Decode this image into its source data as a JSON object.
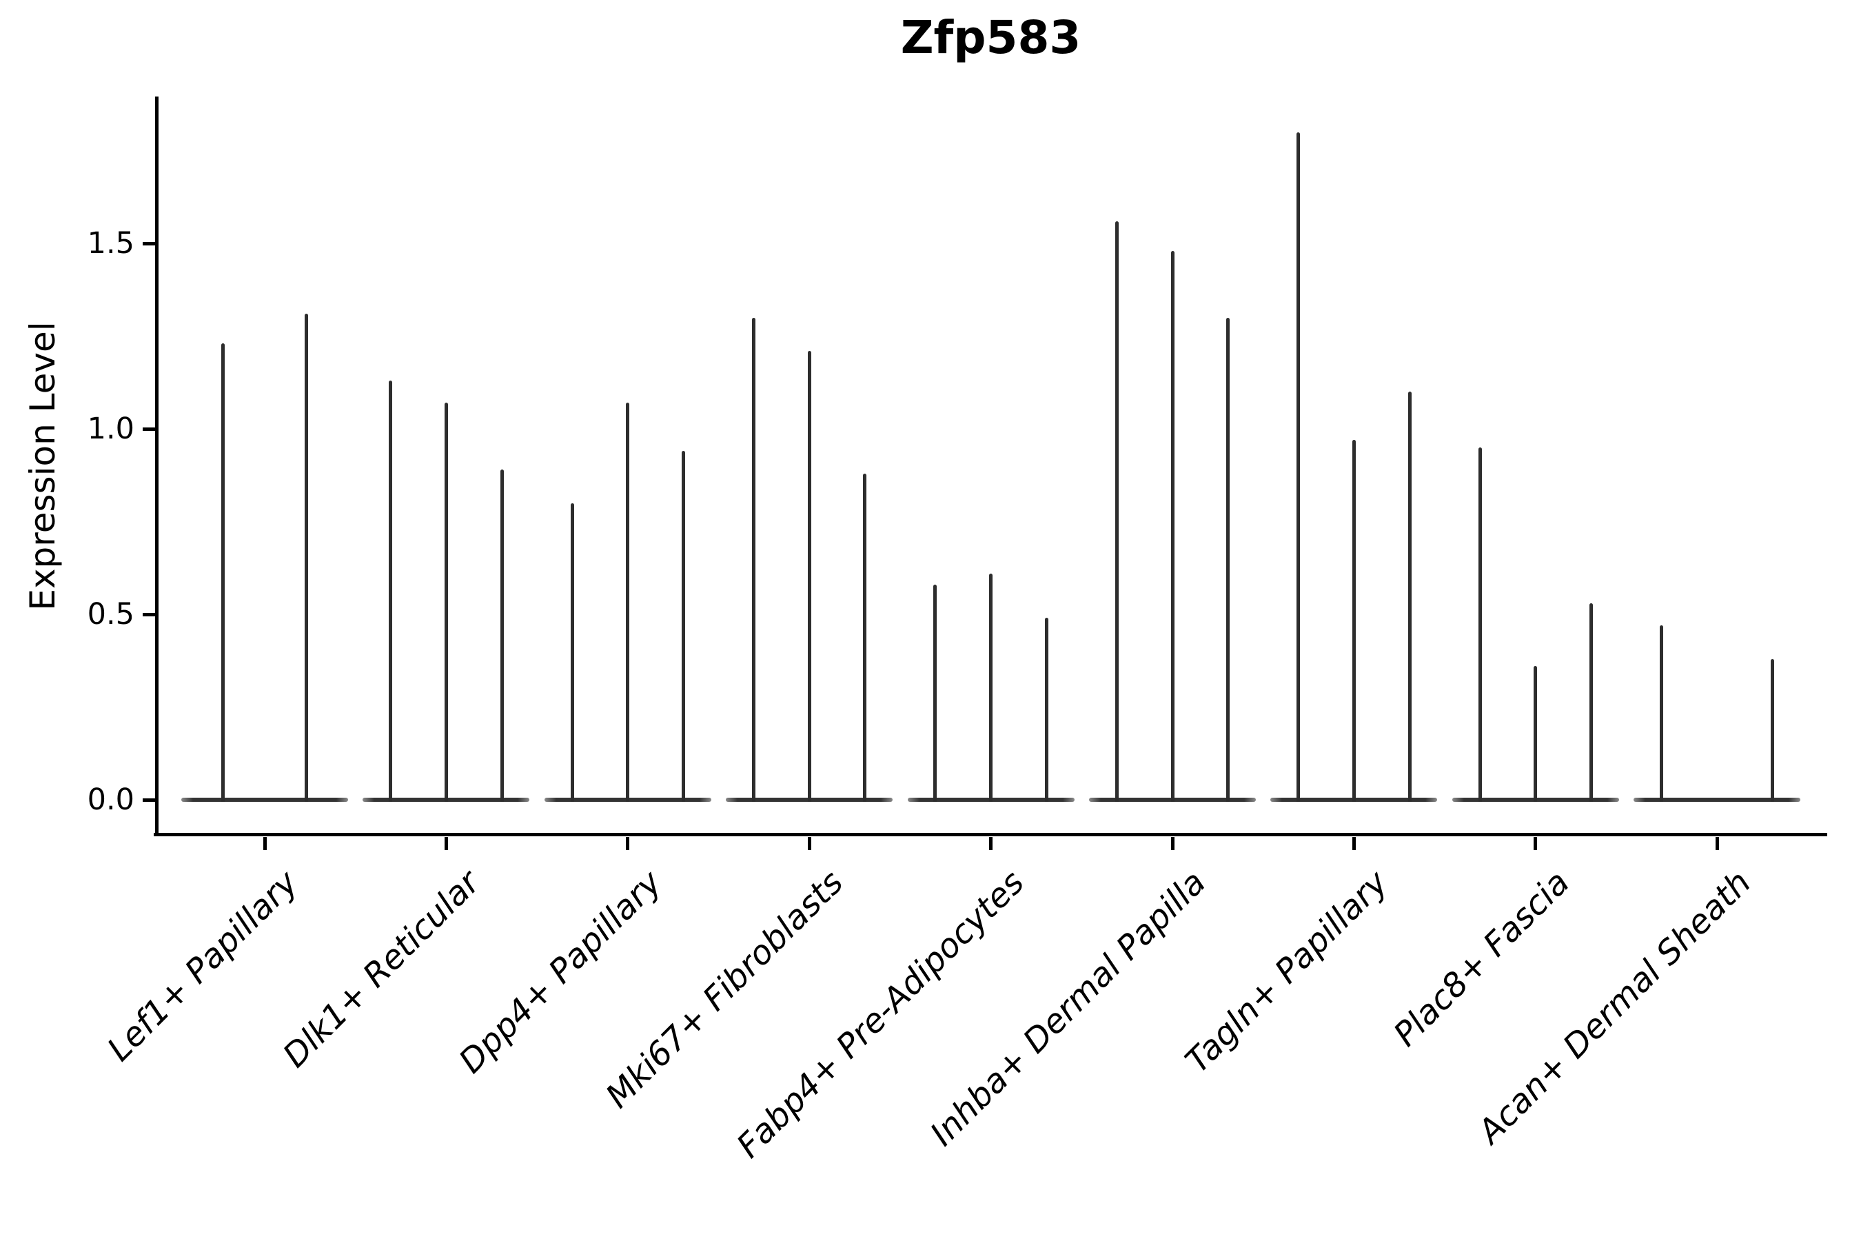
{
  "title": "Zfp583",
  "y_axis": {
    "label": "Expression Level",
    "tick_labels": [
      "0.0",
      "0.5",
      "1.0",
      "1.5"
    ]
  },
  "x_axis": {
    "tick_labels": [
      "Lef1+ Papillary",
      "Dlk1+ Reticular",
      "Dpp4+ Papillary",
      "Mki67+ Fibroblasts",
      "Fabp4+ Pre-Adipocytes",
      "Inhba+ Dermal Papilla",
      "Tagln+ Papillary",
      "Plac8+ Fascia",
      "Acan+ Dermal Sheath"
    ]
  },
  "chart_data": {
    "type": "violin",
    "title": "Zfp583",
    "xlabel": "",
    "ylabel": "Expression Level",
    "categories": [
      "Lef1+ Papillary",
      "Dlk1+ Reticular",
      "Dpp4+ Papillary",
      "Mki67+ Fibroblasts",
      "Fabp4+ Pre-Adipocytes",
      "Inhba+ Dermal Papilla",
      "Tagln+ Papillary",
      "Plac8+ Fascia",
      "Acan+ Dermal Sheath"
    ],
    "yticks": [
      0.0,
      0.5,
      1.0,
      1.5
    ],
    "ylim": [
      -0.09,
      1.9
    ],
    "grid": false,
    "legend": false,
    "description": "Sparse-expression violin plot: each category holds 2-3 dodged violins collapsed to thin vertical spikes above a flat baseline at y=0; spike top = maximum expression level; a value of 0 means a flat (baseline-only) violin.",
    "series": [
      {
        "category": "Lef1+ Papillary",
        "violin_maxima": [
          1.23,
          1.31
        ]
      },
      {
        "category": "Dlk1+ Reticular",
        "violin_maxima": [
          1.13,
          1.07,
          0.89
        ]
      },
      {
        "category": "Dpp4+ Papillary",
        "violin_maxima": [
          0.8,
          1.07,
          0.94
        ]
      },
      {
        "category": "Mki67+ Fibroblasts",
        "violin_maxima": [
          1.3,
          1.21,
          0.88
        ]
      },
      {
        "category": "Fabp4+ Pre-Adipocytes",
        "violin_maxima": [
          0.58,
          0.61,
          0.49
        ]
      },
      {
        "category": "Inhba+ Dermal Papilla",
        "violin_maxima": [
          1.56,
          1.48,
          1.3
        ]
      },
      {
        "category": "Tagln+ Papillary",
        "violin_maxima": [
          1.8,
          0.97,
          1.1
        ]
      },
      {
        "category": "Plac8+ Fascia",
        "violin_maxima": [
          0.95,
          0.36,
          0.53
        ]
      },
      {
        "category": "Acan+ Dermal Sheath",
        "violin_maxima": [
          0.47,
          0.0,
          0.38
        ]
      }
    ],
    "colors": {
      "violin_line": "#2d2d2d",
      "axis": "#000000",
      "background": "#ffffff"
    }
  }
}
